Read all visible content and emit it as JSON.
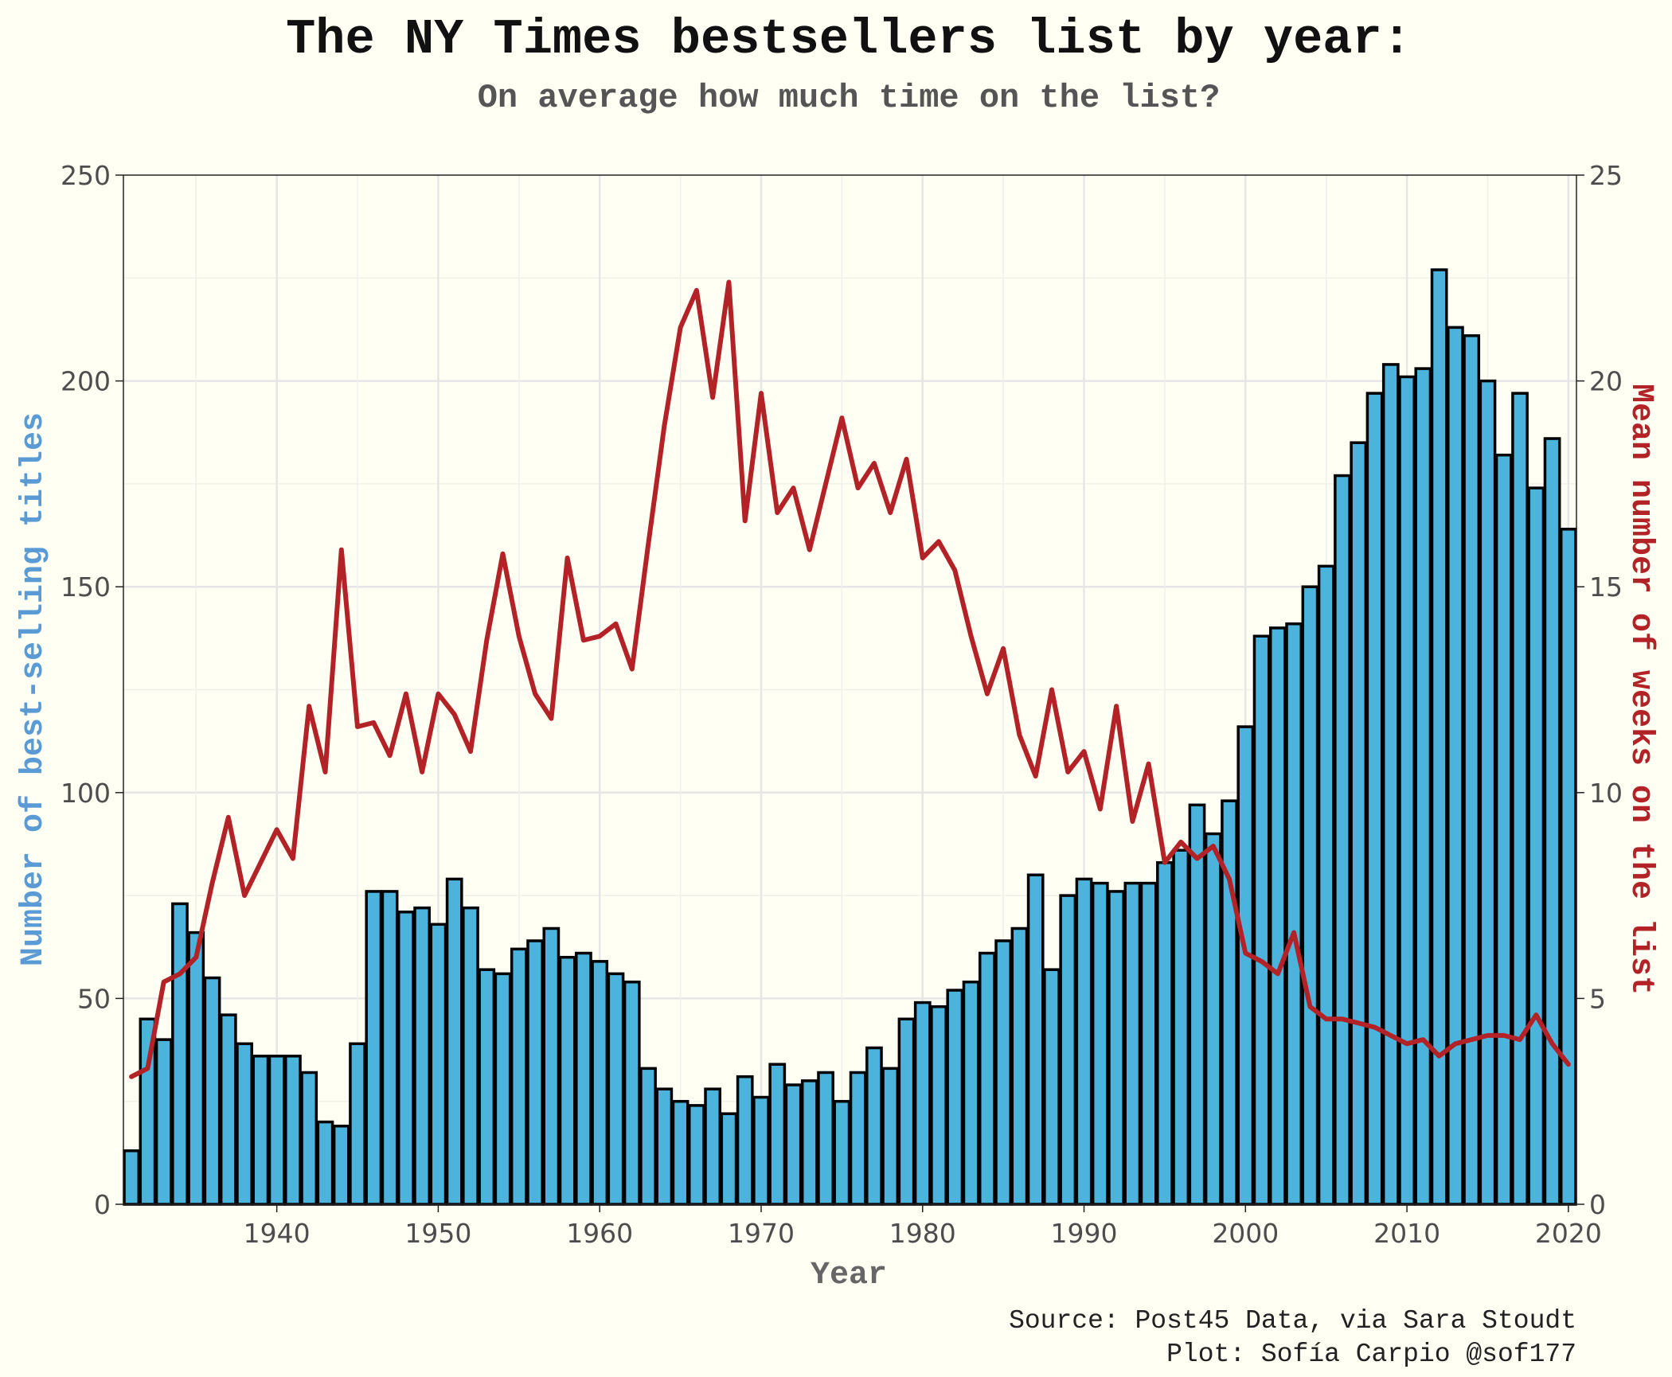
{
  "chart_data": {
    "type": "bar",
    "title": "The NY Times bestsellers list by year:",
    "subtitle": "On average how much time on the list?",
    "xlabel": "Year",
    "ylabel": "Number of best-selling titles",
    "y2label": "Mean number of weeks on the list",
    "caption_line1": "Source: Post45 Data, via Sara Stoudt",
    "caption_line2": "Plot: Sofía Carpio @sof177",
    "xlim": [
      1930.5,
      2020.5
    ],
    "ylim": [
      0,
      250
    ],
    "y2lim": [
      0,
      25
    ],
    "x_ticks": [
      1940,
      1950,
      1960,
      1970,
      1980,
      1990,
      2000,
      2010,
      2020
    ],
    "y_ticks": [
      0,
      50,
      100,
      150,
      200,
      250
    ],
    "y2_ticks": [
      0,
      5,
      10,
      15,
      20,
      25
    ],
    "grid": true,
    "colors": {
      "bars": "#4cb4dc",
      "bar_outline": "#000000",
      "line": "#b22226",
      "ylabel": "#5b9bd5",
      "y2label": "#b22226",
      "background": "#fffff3"
    },
    "series": [
      {
        "kind": "bar",
        "axis": "left",
        "x": [
          1931,
          1932,
          1933,
          1934,
          1935,
          1936,
          1937,
          1938,
          1939,
          1940,
          1941,
          1942,
          1943,
          1944,
          1945,
          1946,
          1947,
          1948,
          1949,
          1950,
          1951,
          1952,
          1953,
          1954,
          1955,
          1956,
          1957,
          1958,
          1959,
          1960,
          1961,
          1962,
          1963,
          1964,
          1965,
          1966,
          1967,
          1968,
          1969,
          1970,
          1971,
          1972,
          1973,
          1974,
          1975,
          1976,
          1977,
          1978,
          1979,
          1980,
          1981,
          1982,
          1983,
          1984,
          1985,
          1986,
          1987,
          1988,
          1989,
          1990,
          1991,
          1992,
          1993,
          1994,
          1995,
          1996,
          1997,
          1998,
          1999,
          2000,
          2001,
          2002,
          2003,
          2004,
          2005,
          2006,
          2007,
          2008,
          2009,
          2010,
          2011,
          2012,
          2013,
          2014,
          2015,
          2016,
          2017,
          2018,
          2019,
          2020
        ],
        "values": [
          13,
          45,
          40,
          73,
          66,
          55,
          46,
          39,
          36,
          36,
          36,
          32,
          20,
          19,
          39,
          76,
          76,
          71,
          72,
          68,
          79,
          72,
          57,
          56,
          62,
          64,
          67,
          60,
          61,
          59,
          56,
          54,
          33,
          28,
          25,
          24,
          28,
          22,
          31,
          26,
          34,
          29,
          30,
          32,
          25,
          32,
          38,
          33,
          45,
          49,
          48,
          52,
          54,
          61,
          64,
          67,
          80,
          57,
          75,
          79,
          78,
          76,
          78,
          78,
          83,
          86,
          97,
          90,
          98,
          116,
          138,
          140,
          141,
          150,
          155,
          177,
          185,
          197,
          204,
          201,
          203,
          227,
          213,
          211,
          200,
          182,
          197,
          174,
          186,
          164
        ]
      },
      {
        "kind": "line",
        "axis": "right",
        "x": [
          1931,
          1932,
          1933,
          1934,
          1935,
          1936,
          1937,
          1938,
          1939,
          1940,
          1941,
          1942,
          1943,
          1944,
          1945,
          1946,
          1947,
          1948,
          1949,
          1950,
          1951,
          1952,
          1953,
          1954,
          1955,
          1956,
          1957,
          1958,
          1959,
          1960,
          1961,
          1962,
          1963,
          1964,
          1965,
          1966,
          1967,
          1968,
          1969,
          1970,
          1971,
          1972,
          1973,
          1974,
          1975,
          1976,
          1977,
          1978,
          1979,
          1980,
          1981,
          1982,
          1983,
          1984,
          1985,
          1986,
          1987,
          1988,
          1989,
          1990,
          1991,
          1992,
          1993,
          1994,
          1995,
          1996,
          1997,
          1998,
          1999,
          2000,
          2001,
          2002,
          2003,
          2004,
          2005,
          2006,
          2007,
          2008,
          2009,
          2010,
          2011,
          2012,
          2013,
          2014,
          2015,
          2016,
          2017,
          2018,
          2019,
          2020
        ],
        "values": [
          3.1,
          3.3,
          5.4,
          5.6,
          6.0,
          7.8,
          9.4,
          7.5,
          8.3,
          9.1,
          8.4,
          12.1,
          10.5,
          15.9,
          11.6,
          11.7,
          10.9,
          12.4,
          10.5,
          12.4,
          11.9,
          11.0,
          13.7,
          15.8,
          13.8,
          12.4,
          11.8,
          15.7,
          13.7,
          13.8,
          14.1,
          13.0,
          16.0,
          18.9,
          21.3,
          22.2,
          19.6,
          22.4,
          16.6,
          19.7,
          16.8,
          17.4,
          15.9,
          17.5,
          19.1,
          17.4,
          18.0,
          16.8,
          18.1,
          15.7,
          16.1,
          15.4,
          13.8,
          12.4,
          13.5,
          11.4,
          10.4,
          12.5,
          10.5,
          11.0,
          9.6,
          12.1,
          9.3,
          10.7,
          8.3,
          8.8,
          8.4,
          8.7,
          7.9,
          6.1,
          5.9,
          5.6,
          6.6,
          4.8,
          4.5,
          4.5,
          4.4,
          4.3,
          4.1,
          3.9,
          4.0,
          3.6,
          3.9,
          4.0,
          4.1,
          4.1,
          4.0,
          4.6,
          3.9,
          3.4
        ]
      }
    ]
  }
}
